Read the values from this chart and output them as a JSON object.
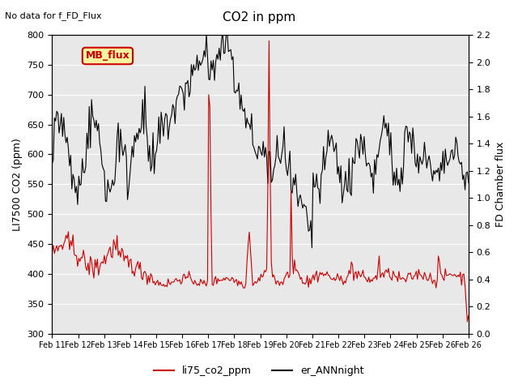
{
  "title": "CO2 in ppm",
  "top_left_text": "No data for f_FD_Flux",
  "ylabel_left": "LI7500 CO2 (ppm)",
  "ylabel_right": "FD Chamber flux",
  "legend_box_label": "MB_flux",
  "legend_items": [
    "li75_co2_ppm",
    "er_ANNnight"
  ],
  "legend_colors": [
    "#cc0000",
    "#000000"
  ],
  "ylim_left": [
    300,
    800
  ],
  "ylim_right": [
    0.0,
    2.2
  ],
  "yticks_left": [
    300,
    350,
    400,
    450,
    500,
    550,
    600,
    650,
    700,
    750,
    800
  ],
  "yticks_right": [
    0.0,
    0.2,
    0.4,
    0.6,
    0.8,
    1.0,
    1.2,
    1.4,
    1.6,
    1.8,
    2.0,
    2.2
  ],
  "background_color": "#e8e8e8",
  "plot_bg_color": "#e8e8e8",
  "line_color_red": "#cc0000",
  "line_color_black": "#000000",
  "n_points": 360
}
